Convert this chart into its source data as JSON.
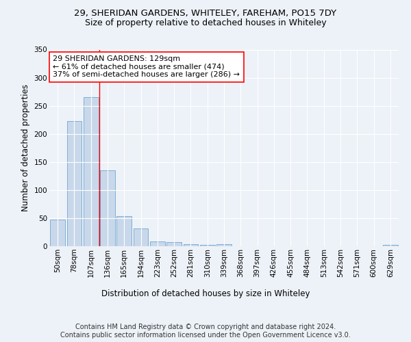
{
  "title1": "29, SHERIDAN GARDENS, WHITELEY, FAREHAM, PO15 7DY",
  "title2": "Size of property relative to detached houses in Whiteley",
  "xlabel": "Distribution of detached houses by size in Whiteley",
  "ylabel": "Number of detached properties",
  "categories": [
    "50sqm",
    "78sqm",
    "107sqm",
    "136sqm",
    "165sqm",
    "194sqm",
    "223sqm",
    "252sqm",
    "281sqm",
    "310sqm",
    "339sqm",
    "368sqm",
    "397sqm",
    "426sqm",
    "455sqm",
    "484sqm",
    "513sqm",
    "542sqm",
    "571sqm",
    "600sqm",
    "629sqm"
  ],
  "values": [
    47,
    223,
    265,
    135,
    54,
    32,
    9,
    7,
    4,
    3,
    4,
    0,
    0,
    0,
    0,
    0,
    0,
    0,
    0,
    0,
    3
  ],
  "bar_color": "#c8d8ea",
  "bar_edge_color": "#7daed4",
  "vline_x": 2.5,
  "vline_color": "red",
  "annotation_text": "29 SHERIDAN GARDENS: 129sqm\n← 61% of detached houses are smaller (474)\n37% of semi-detached houses are larger (286) →",
  "annotation_box_color": "white",
  "annotation_box_edge_color": "red",
  "ylim": [
    0,
    350
  ],
  "yticks": [
    0,
    50,
    100,
    150,
    200,
    250,
    300,
    350
  ],
  "footnote": "Contains HM Land Registry data © Crown copyright and database right 2024.\nContains public sector information licensed under the Open Government Licence v3.0.",
  "title1_fontsize": 9.5,
  "title2_fontsize": 9,
  "axis_label_fontsize": 8.5,
  "tick_fontsize": 7.5,
  "annotation_fontsize": 8,
  "footnote_fontsize": 7,
  "background_color": "#edf2f8",
  "grid_color": "white"
}
